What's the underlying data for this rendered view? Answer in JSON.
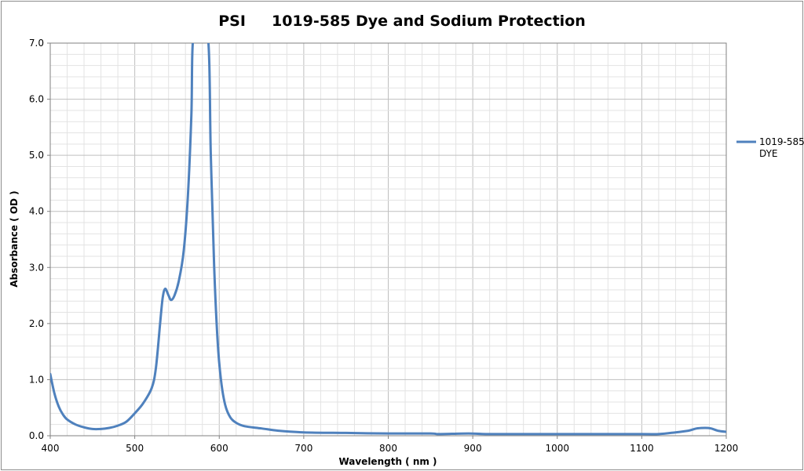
{
  "chart_data": {
    "type": "line",
    "title": "PSI     1019-585 Dye and Sodium Protection",
    "xlabel": "Wavelength  ( nm )",
    "ylabel": "Absorbance ( OD )",
    "xlim": [
      400,
      1200
    ],
    "ylim": [
      0,
      7
    ],
    "x_ticks": [
      "400",
      "500",
      "600",
      "700",
      "800",
      "900",
      "1000",
      "1100",
      "1200"
    ],
    "y_ticks": [
      "0.0",
      "1.0",
      "2.0",
      "3.0",
      "4.0",
      "5.0",
      "6.0",
      "7.0"
    ],
    "grid": true,
    "legend_position": "right",
    "series": [
      {
        "name": "1019-585 DYE",
        "color": "#4f81bd",
        "points": [
          [
            400,
            1.1
          ],
          [
            405,
            0.75
          ],
          [
            410,
            0.52
          ],
          [
            415,
            0.38
          ],
          [
            420,
            0.29
          ],
          [
            430,
            0.2
          ],
          [
            440,
            0.15
          ],
          [
            450,
            0.12
          ],
          [
            460,
            0.12
          ],
          [
            470,
            0.14
          ],
          [
            480,
            0.18
          ],
          [
            490,
            0.25
          ],
          [
            500,
            0.4
          ],
          [
            510,
            0.58
          ],
          [
            520,
            0.85
          ],
          [
            525,
            1.2
          ],
          [
            530,
            2.0
          ],
          [
            533,
            2.45
          ],
          [
            536,
            2.62
          ],
          [
            540,
            2.5
          ],
          [
            543,
            2.42
          ],
          [
            547,
            2.5
          ],
          [
            552,
            2.75
          ],
          [
            558,
            3.3
          ],
          [
            563,
            4.3
          ],
          [
            567,
            5.7
          ],
          [
            570,
            7.2
          ],
          [
            586,
            7.2
          ],
          [
            590,
            5.0
          ],
          [
            594,
            3.0
          ],
          [
            598,
            1.7
          ],
          [
            602,
            1.0
          ],
          [
            607,
            0.55
          ],
          [
            613,
            0.33
          ],
          [
            620,
            0.23
          ],
          [
            630,
            0.17
          ],
          [
            650,
            0.13
          ],
          [
            670,
            0.09
          ],
          [
            700,
            0.06
          ],
          [
            750,
            0.05
          ],
          [
            800,
            0.04
          ],
          [
            850,
            0.04
          ],
          [
            860,
            0.03
          ],
          [
            895,
            0.04
          ],
          [
            920,
            0.03
          ],
          [
            1000,
            0.03
          ],
          [
            1100,
            0.03
          ],
          [
            1120,
            0.03
          ],
          [
            1140,
            0.06
          ],
          [
            1155,
            0.09
          ],
          [
            1165,
            0.13
          ],
          [
            1175,
            0.14
          ],
          [
            1182,
            0.13
          ],
          [
            1190,
            0.09
          ],
          [
            1200,
            0.07
          ]
        ]
      }
    ]
  }
}
